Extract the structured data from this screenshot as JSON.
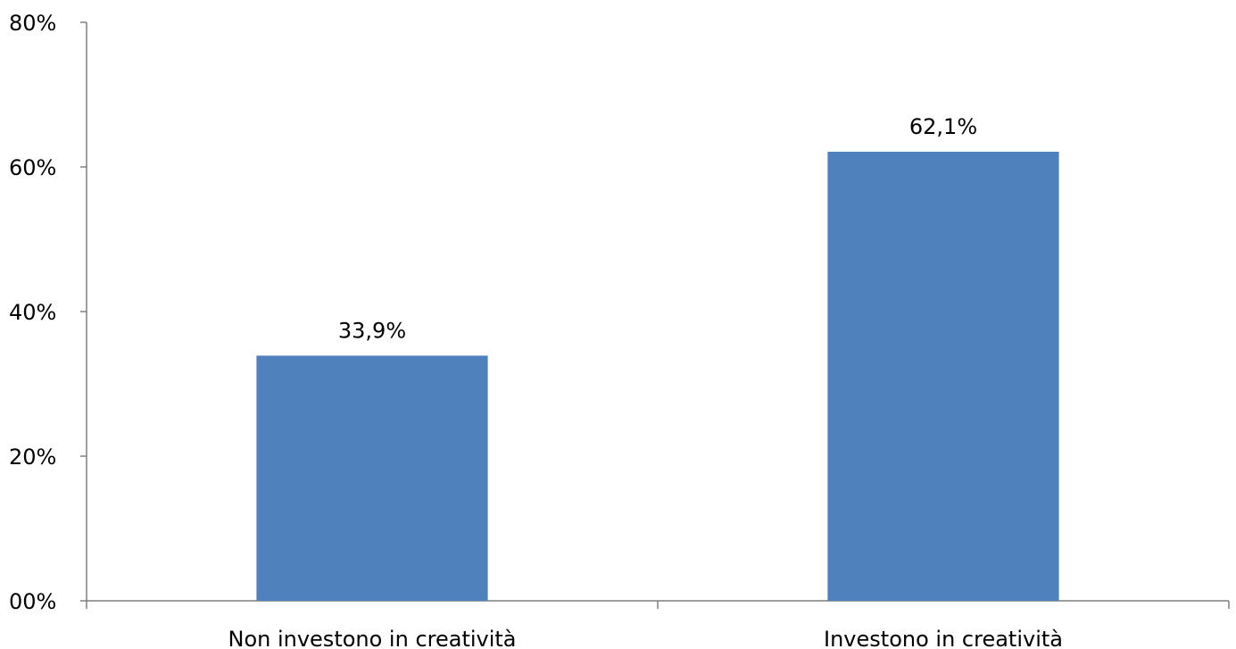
{
  "chart_data": {
    "type": "bar",
    "categories": [
      "Non investono in creatività",
      "Investono in creatività"
    ],
    "values": [
      33.9,
      62.1
    ],
    "value_labels": [
      "33,9%",
      "62,1%"
    ],
    "ylim": [
      0,
      80
    ],
    "yticks": [
      0,
      20,
      40,
      60,
      80
    ],
    "ytick_labels": [
      "00%",
      "20%",
      "40%",
      "60%",
      "80%"
    ],
    "title": "",
    "xlabel": "",
    "ylabel": "",
    "grid": false,
    "bar_color": "#4f81bd",
    "axis_color": "#7f7f7f"
  }
}
